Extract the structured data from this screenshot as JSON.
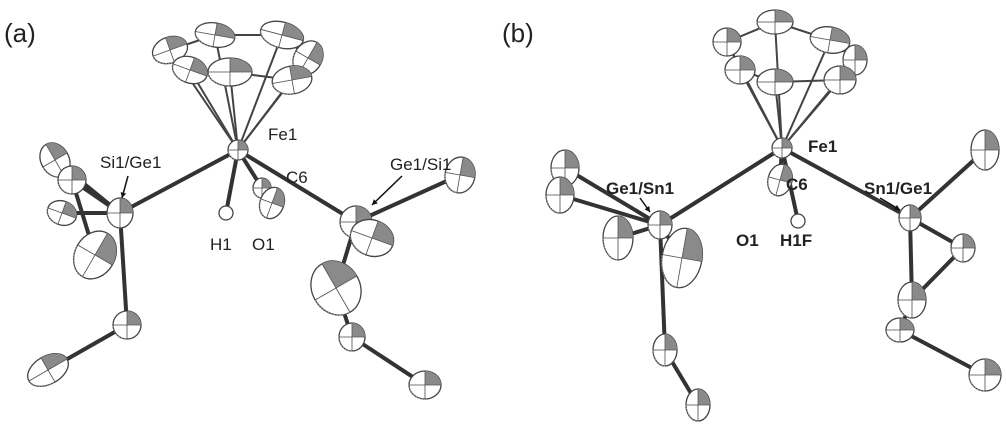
{
  "panels": [
    {
      "label": "(a)",
      "atoms": {
        "fe": "Fe1",
        "left": "Si1/Ge1",
        "c": "C6",
        "right": "Ge1/Si1",
        "h": "H1",
        "o": "O1"
      }
    },
    {
      "label": "(b)",
      "atoms": {
        "fe": "Fe1",
        "left": "Ge1/Sn1",
        "c": "C6",
        "right": "Sn1/Ge1",
        "o": "O1",
        "h": "H1F"
      }
    }
  ]
}
